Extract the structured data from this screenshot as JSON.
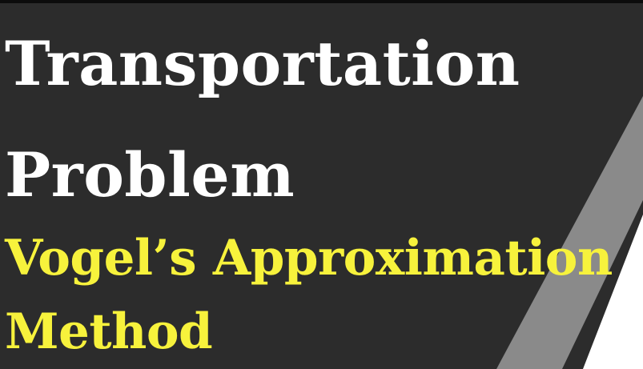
{
  "slide": {
    "title_line_1": "Transportation",
    "title_line_2": "Problem",
    "subtitle_line_1": "Vogel’s Approximation",
    "subtitle_line_2": "Method"
  },
  "colors": {
    "background": "#2c2c2c",
    "title_text": "#ffffff",
    "subtitle_text": "#f7f23c",
    "stripe_gray": "#8a8a8a",
    "corner_white": "#ffffff"
  }
}
